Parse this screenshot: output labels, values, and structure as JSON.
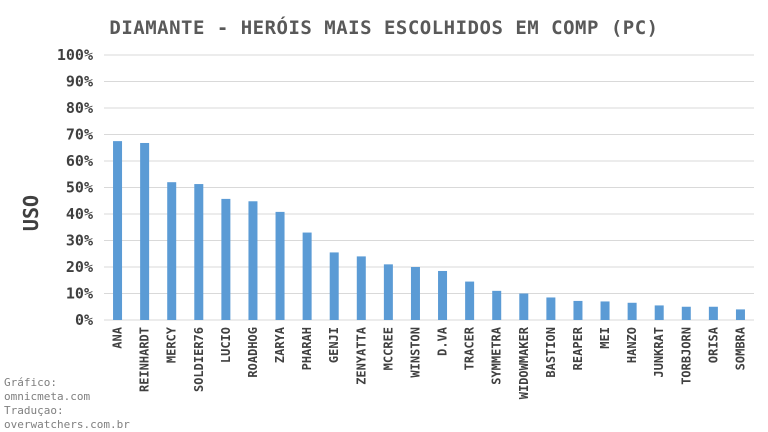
{
  "chart_data": {
    "type": "bar",
    "title": "DIAMANTE - HERÓIS MAIS ESCOLHIDOS EM COMP (PC)",
    "xlabel": "",
    "ylabel": "USO",
    "ylim": [
      0,
      100
    ],
    "y_tick_labels": [
      "0%",
      "10%",
      "20%",
      "30%",
      "40%",
      "50%",
      "60%",
      "70%",
      "80%",
      "90%",
      "100%"
    ],
    "grid": true,
    "legend": "none",
    "bar_color": "#5b9bd5",
    "categories": [
      "ANA",
      "REINHARDT",
      "MERCY",
      "SOLDIER76",
      "LUCIO",
      "ROADHOG",
      "ZARYA",
      "PHARAH",
      "GENJI",
      "ZENYATTA",
      "MCCREE",
      "WINSTON",
      "D.VA",
      "TRACER",
      "SYMMETRA",
      "WIDOWMAKER",
      "BASTION",
      "REAPER",
      "MEI",
      "HANZO",
      "JUNKRAT",
      "TORBJORN",
      "ORISA",
      "SOMBRA"
    ],
    "values": [
      67.5,
      66.8,
      52.0,
      51.3,
      45.7,
      44.8,
      40.8,
      33.0,
      25.5,
      24.0,
      21.0,
      20.0,
      18.5,
      14.5,
      11.0,
      10.0,
      8.5,
      7.2,
      7.0,
      6.5,
      5.5,
      5.0,
      5.0,
      4.0
    ]
  },
  "credits": [
    "Gráfico:",
    "omnicmeta.com",
    "Traduçao:",
    "overwatchers.com.br"
  ]
}
